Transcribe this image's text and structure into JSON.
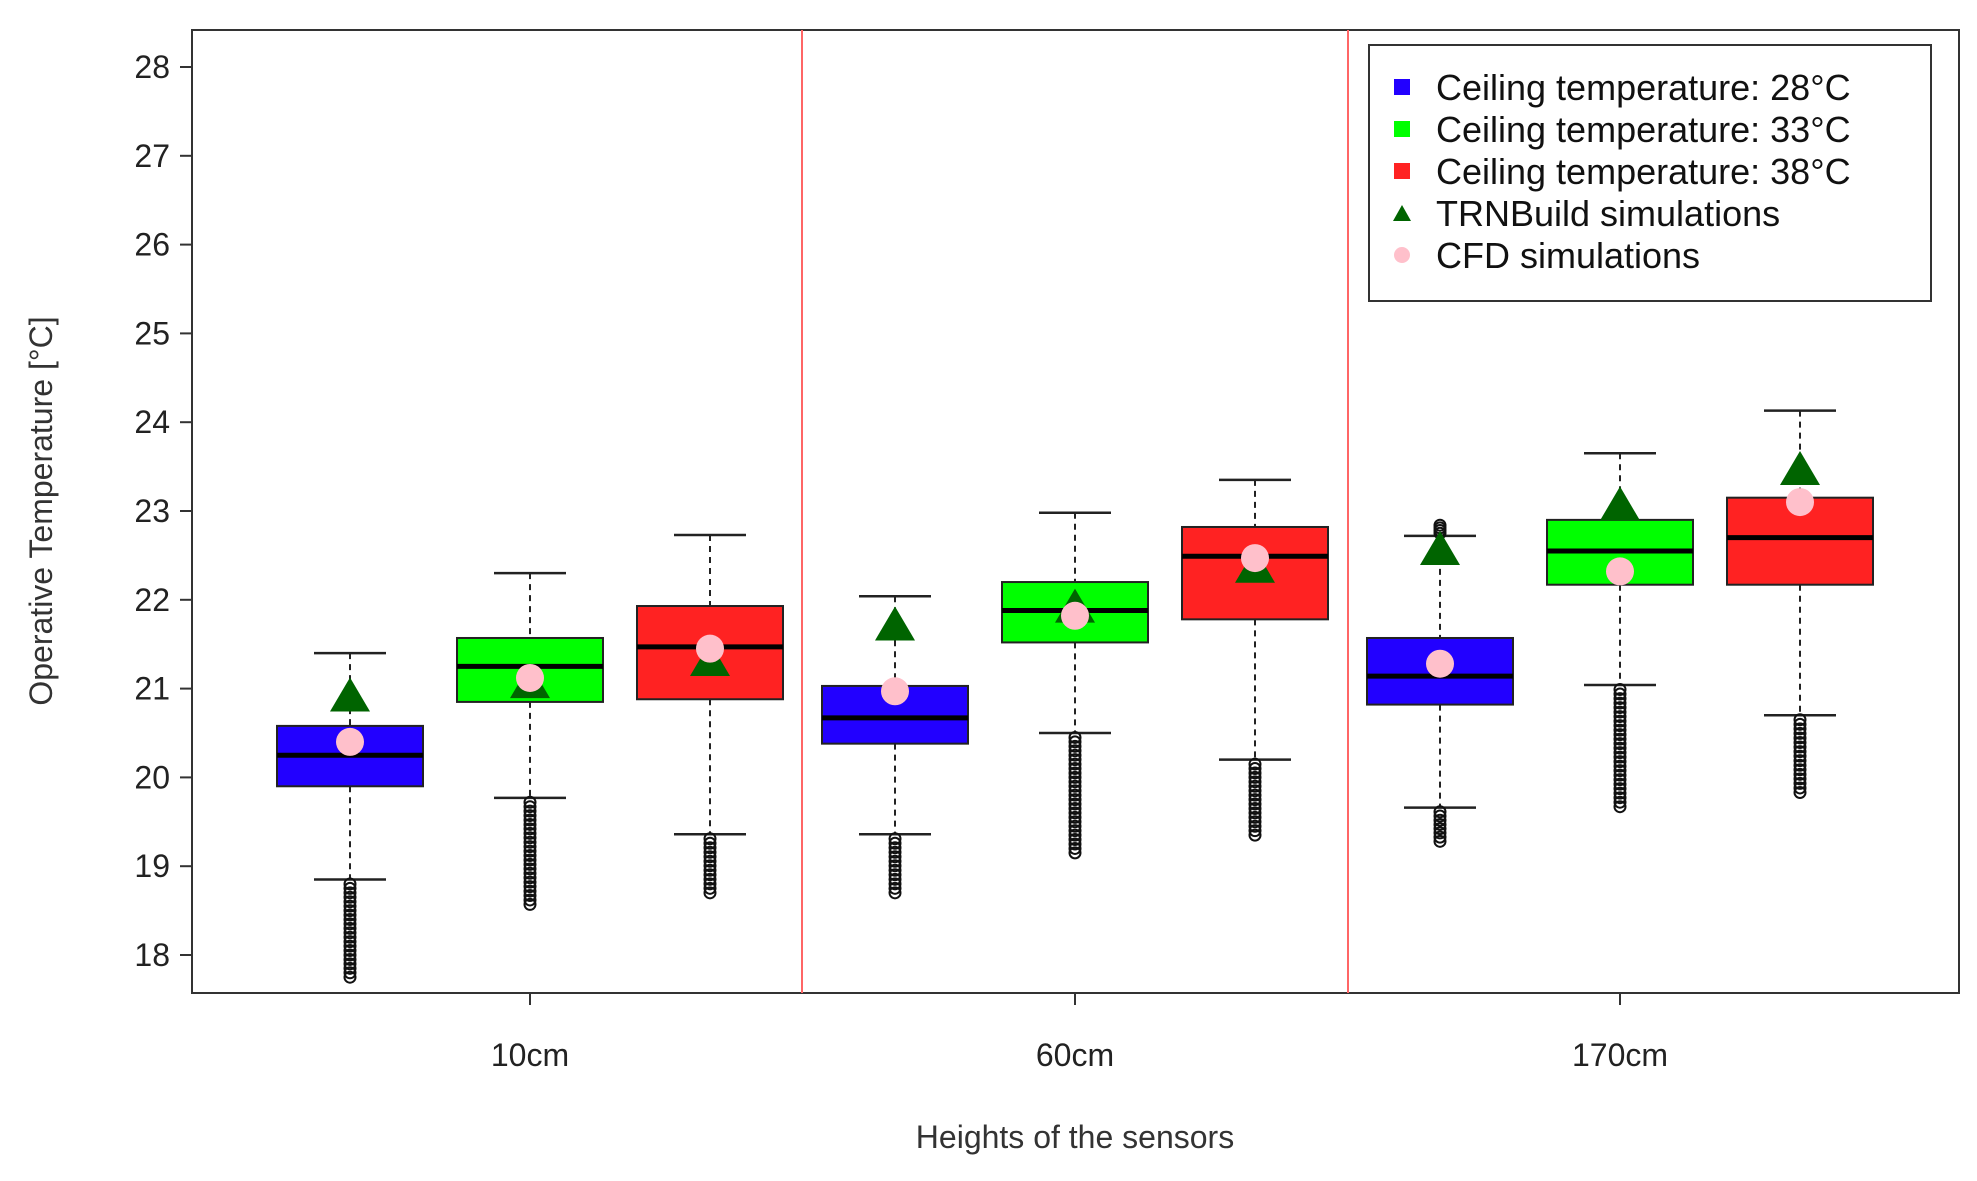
{
  "chart_data": {
    "type": "boxplot",
    "title": "",
    "xlabel": "Heights of the sensors",
    "ylabel": "Operative Temperature [°C]",
    "ylim": [
      17.6,
      28.4
    ],
    "yticks": [
      "18",
      "19",
      "20",
      "21",
      "22",
      "23",
      "24",
      "25",
      "26",
      "27",
      "28"
    ],
    "categories": [
      "10cm",
      "60cm",
      "170cm"
    ],
    "series": [
      {
        "name": "Ceiling temperature: 28°C",
        "color": "#2200ff",
        "boxes": [
          {
            "q1": 19.9,
            "median": 20.25,
            "q3": 20.58,
            "whisker_low": 18.85,
            "whisker_high": 21.4,
            "outlier_min": 17.75
          },
          {
            "q1": 20.38,
            "median": 20.67,
            "q3": 21.03,
            "whisker_low": 19.36,
            "whisker_high": 22.04,
            "outlier_min": 18.7
          },
          {
            "q1": 20.82,
            "median": 21.14,
            "q3": 21.57,
            "whisker_low": 19.66,
            "whisker_high": 22.72,
            "outlier_min": 19.28,
            "outlier_max": 22.84
          }
        ]
      },
      {
        "name": "Ceiling temperature: 33°C",
        "color": "#00ff00",
        "boxes": [
          {
            "q1": 20.85,
            "median": 21.25,
            "q3": 21.57,
            "whisker_low": 19.77,
            "whisker_high": 22.3,
            "outlier_min": 18.57
          },
          {
            "q1": 21.52,
            "median": 21.88,
            "q3": 22.2,
            "whisker_low": 20.5,
            "whisker_high": 22.98,
            "outlier_min": 19.15
          },
          {
            "q1": 22.17,
            "median": 22.55,
            "q3": 22.9,
            "whisker_low": 21.04,
            "whisker_high": 23.65,
            "outlier_min": 19.67
          }
        ]
      },
      {
        "name": "Ceiling temperature: 38°C",
        "color": "#ff2222",
        "boxes": [
          {
            "q1": 20.88,
            "median": 21.47,
            "q3": 21.93,
            "whisker_low": 19.36,
            "whisker_high": 22.73,
            "outlier_min": 18.7
          },
          {
            "q1": 21.78,
            "median": 22.49,
            "q3": 22.82,
            "whisker_low": 20.2,
            "whisker_high": 23.35,
            "outlier_min": 19.35
          },
          {
            "q1": 22.17,
            "median": 22.7,
            "q3": 23.15,
            "whisker_low": 20.7,
            "whisker_high": 24.13,
            "outlier_min": 19.83
          }
        ]
      }
    ],
    "trnbuild": {
      "name": "TRNBuild simulations",
      "color": "#006400",
      "values": [
        [
          20.9,
          21.05,
          21.3
        ],
        [
          21.7,
          21.9,
          22.35
        ],
        [
          22.55,
          23.05,
          23.45
        ]
      ]
    },
    "cfd": {
      "name": "CFD simulations",
      "color": "#ffc0cb",
      "values": [
        [
          20.4,
          21.12,
          21.45
        ],
        [
          20.97,
          21.82,
          22.47
        ],
        [
          21.28,
          22.32,
          23.1
        ]
      ]
    },
    "group_separators_color": "#ff6666",
    "legend_position": "top-right"
  }
}
